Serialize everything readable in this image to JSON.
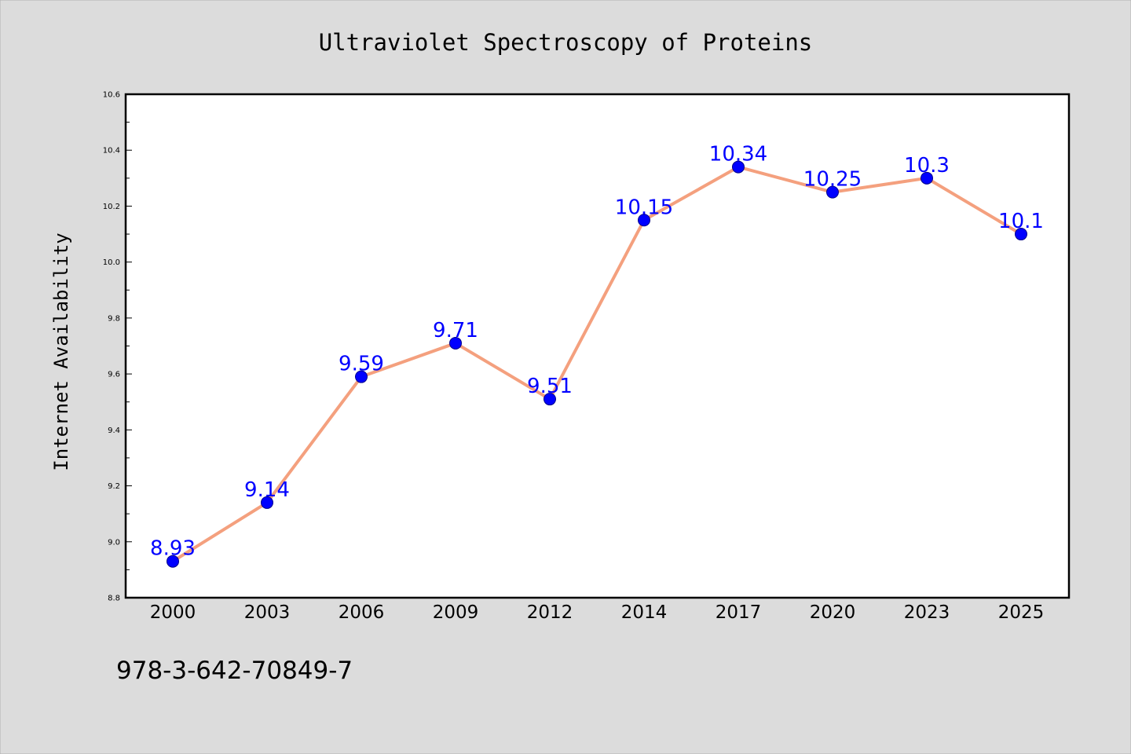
{
  "chart_data": {
    "type": "line",
    "title": "Ultraviolet Spectroscopy of Proteins",
    "ylabel": "Internet Availability",
    "xlabel": "",
    "categories": [
      "2000",
      "2003",
      "2006",
      "2009",
      "2012",
      "2014",
      "2017",
      "2020",
      "2023",
      "2025"
    ],
    "series": [
      {
        "values": [
          8.93,
          9.14,
          9.59,
          9.71,
          9.51,
          10.15,
          10.34,
          10.25,
          10.3,
          10.1
        ]
      }
    ],
    "data_labels": [
      "8.93",
      "9.14",
      "9.59",
      "9.71",
      "9.51",
      "10.15",
      "10.34",
      "10.25",
      "10.3",
      "10.1"
    ],
    "ylim": [
      8.8,
      10.6
    ],
    "yticks": [
      8.8,
      9.0,
      9.2,
      9.4,
      9.6,
      9.8,
      10.0,
      10.2,
      10.4,
      10.6
    ],
    "ytick_labels": [
      "8.8",
      "9.0",
      "9.2",
      "9.4",
      "9.6",
      "9.8",
      "10.0",
      "10.2",
      "10.4",
      "10.6"
    ],
    "grid": false,
    "legend": "none",
    "annotation": "978-3-642-70849-7",
    "colors": {
      "line": "#f4a07e",
      "marker": "#0000ff",
      "marker_edge": "#00008b",
      "data_label": "#0000ff",
      "background": "#dcdcdc",
      "plot_background": "#ffffff"
    }
  }
}
